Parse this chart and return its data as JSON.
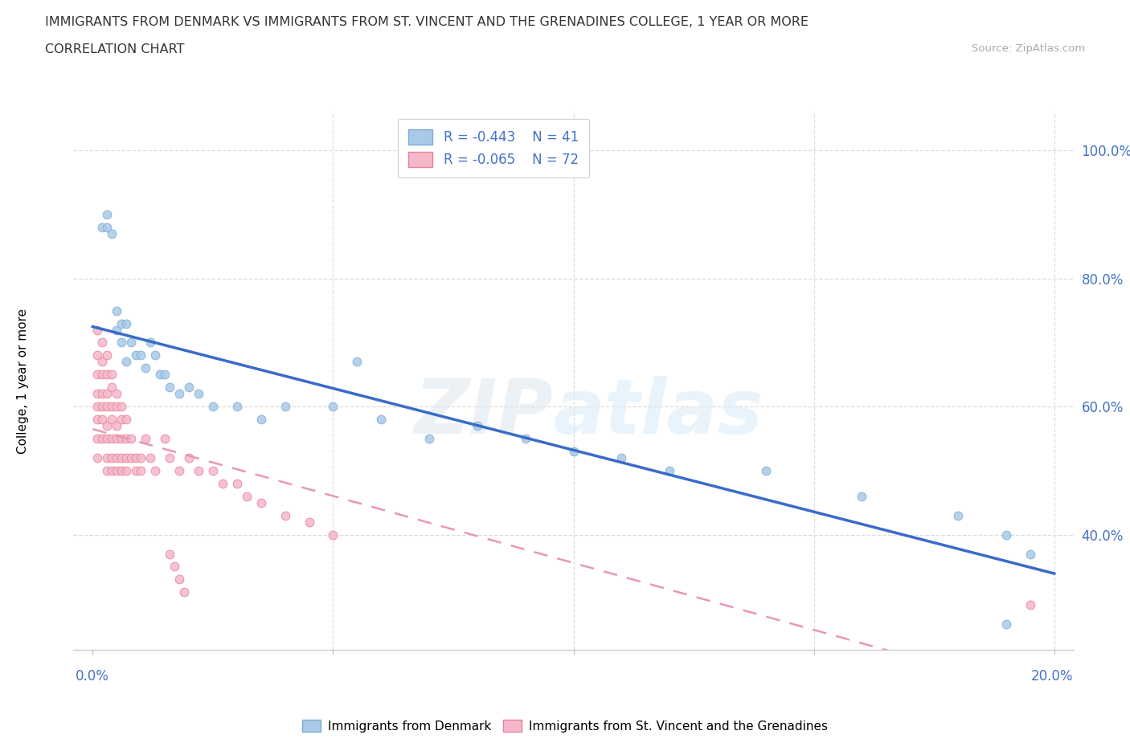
{
  "title_line1": "IMMIGRANTS FROM DENMARK VS IMMIGRANTS FROM ST. VINCENT AND THE GRENADINES COLLEGE, 1 YEAR OR MORE",
  "title_line2": "CORRELATION CHART",
  "source_text": "Source: ZipAtlas.com",
  "x_edge_left": "0.0%",
  "x_edge_right": "20.0%",
  "ylabel": "College, 1 year or more",
  "watermark_zip": "ZIP",
  "watermark_atlas": "atlas",
  "legend_text": [
    "R = -0.443    N = 41",
    "R = -0.065    N = 72"
  ],
  "bottom_legend": [
    "Immigrants from Denmark",
    "Immigrants from St. Vincent and the Grenadines"
  ],
  "denmark_color": "#aac9e8",
  "denmark_edge": "#7aadd4",
  "stvincent_color": "#f5b8cb",
  "stvincent_edge": "#e8809a",
  "trend_dk_color": "#3a6bc8",
  "trend_sv_color": "#e898b0",
  "axis_tick_color": "#4472c4",
  "denmark_x": [
    0.002,
    0.003,
    0.003,
    0.004,
    0.005,
    0.005,
    0.006,
    0.006,
    0.007,
    0.007,
    0.008,
    0.009,
    0.01,
    0.011,
    0.012,
    0.013,
    0.014,
    0.015,
    0.016,
    0.018,
    0.02,
    0.022,
    0.025,
    0.03,
    0.035,
    0.04,
    0.05,
    0.055,
    0.06,
    0.07,
    0.08,
    0.09,
    0.1,
    0.11,
    0.12,
    0.14,
    0.16,
    0.18,
    0.19,
    0.195,
    0.19
  ],
  "denmark_y": [
    0.88,
    0.88,
    0.9,
    0.87,
    0.75,
    0.72,
    0.73,
    0.7,
    0.73,
    0.67,
    0.7,
    0.68,
    0.68,
    0.66,
    0.7,
    0.68,
    0.65,
    0.65,
    0.63,
    0.62,
    0.63,
    0.62,
    0.6,
    0.6,
    0.58,
    0.6,
    0.6,
    0.67,
    0.58,
    0.55,
    0.57,
    0.55,
    0.53,
    0.52,
    0.5,
    0.5,
    0.46,
    0.43,
    0.4,
    0.37,
    0.26
  ],
  "stvincent_x": [
    0.001,
    0.001,
    0.001,
    0.001,
    0.001,
    0.001,
    0.001,
    0.001,
    0.002,
    0.002,
    0.002,
    0.002,
    0.002,
    0.002,
    0.002,
    0.003,
    0.003,
    0.003,
    0.003,
    0.003,
    0.003,
    0.003,
    0.003,
    0.004,
    0.004,
    0.004,
    0.004,
    0.004,
    0.004,
    0.004,
    0.005,
    0.005,
    0.005,
    0.005,
    0.005,
    0.005,
    0.006,
    0.006,
    0.006,
    0.006,
    0.006,
    0.007,
    0.007,
    0.007,
    0.007,
    0.008,
    0.008,
    0.009,
    0.009,
    0.01,
    0.01,
    0.011,
    0.012,
    0.013,
    0.015,
    0.016,
    0.018,
    0.02,
    0.022,
    0.025,
    0.027,
    0.03,
    0.032,
    0.035,
    0.04,
    0.045,
    0.05,
    0.016,
    0.017,
    0.018,
    0.019,
    0.195
  ],
  "stvincent_y": [
    0.72,
    0.68,
    0.65,
    0.62,
    0.6,
    0.58,
    0.55,
    0.52,
    0.7,
    0.67,
    0.65,
    0.62,
    0.6,
    0.58,
    0.55,
    0.68,
    0.65,
    0.62,
    0.6,
    0.57,
    0.55,
    0.52,
    0.5,
    0.65,
    0.63,
    0.6,
    0.58,
    0.55,
    0.52,
    0.5,
    0.62,
    0.6,
    0.57,
    0.55,
    0.52,
    0.5,
    0.6,
    0.58,
    0.55,
    0.52,
    0.5,
    0.58,
    0.55,
    0.52,
    0.5,
    0.55,
    0.52,
    0.52,
    0.5,
    0.52,
    0.5,
    0.55,
    0.52,
    0.5,
    0.55,
    0.52,
    0.5,
    0.52,
    0.5,
    0.5,
    0.48,
    0.48,
    0.46,
    0.45,
    0.43,
    0.42,
    0.4,
    0.37,
    0.35,
    0.33,
    0.31,
    0.29
  ],
  "xlim": [
    -0.004,
    0.204
  ],
  "ylim": [
    0.22,
    1.06
  ],
  "y_ticks": [
    0.4,
    0.6,
    0.8,
    1.0
  ],
  "y_tick_labels": [
    "40.0%",
    "60.0%",
    "80.0%",
    "100.0%"
  ],
  "x_ticks": [
    0.0,
    0.05,
    0.1,
    0.15,
    0.2
  ]
}
